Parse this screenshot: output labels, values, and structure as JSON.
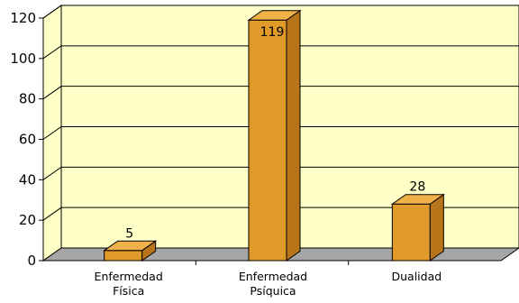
{
  "chart_data": {
    "type": "bar",
    "style": "3d",
    "categories": [
      [
        "Enfermedad",
        "Física"
      ],
      [
        "Enfermedad",
        "Psíquica"
      ],
      [
        "Dualidad"
      ]
    ],
    "values": [
      5,
      119,
      28
    ],
    "data_labels": [
      "5",
      "119",
      "28"
    ],
    "ylim": [
      0,
      120
    ],
    "yticks": [
      "0",
      "20",
      "40",
      "60",
      "80",
      "100",
      "120"
    ],
    "grid": true,
    "legend": "none",
    "colors": {
      "plot_background": "#FFFFC8",
      "floor": "#A6A6A6",
      "bar_front": "#E09A2A",
      "bar_top": "#F0B248",
      "bar_side": "#B87418",
      "outline": "#000000"
    }
  }
}
